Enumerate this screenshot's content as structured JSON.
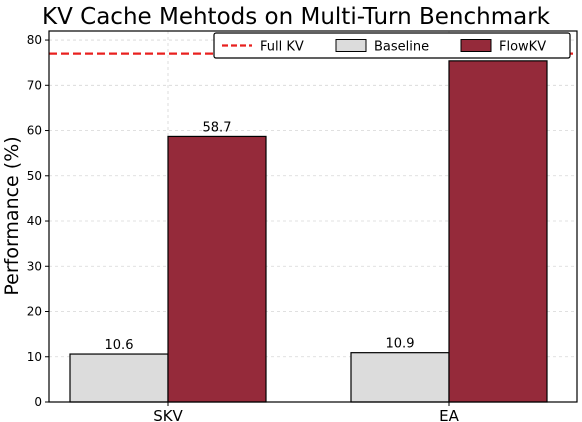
{
  "chart_data": {
    "type": "bar",
    "title": "KV Cache Mehtods on Multi-Turn Benchmark",
    "xlabel": "",
    "ylabel": "Performance (%)",
    "categories": [
      "SKV",
      "EA"
    ],
    "series": [
      {
        "name": "Baseline",
        "values": [
          10.6,
          10.9
        ],
        "color": "#dcdcdc"
      },
      {
        "name": "FlowKV",
        "values": [
          58.7,
          75.4
        ],
        "color": "#952a3a"
      }
    ],
    "data_labels": [
      [
        "10.6",
        "10.9"
      ],
      [
        "58.7",
        "75.4"
      ]
    ],
    "reference_line": {
      "name": "Full KV",
      "value": 77,
      "color": "#e8201f",
      "style": "dashed"
    },
    "ylim": [
      0,
      82
    ],
    "yticks": [
      0,
      10,
      20,
      30,
      40,
      50,
      60,
      70,
      80
    ],
    "grid": true,
    "legend_position": "top-right"
  }
}
